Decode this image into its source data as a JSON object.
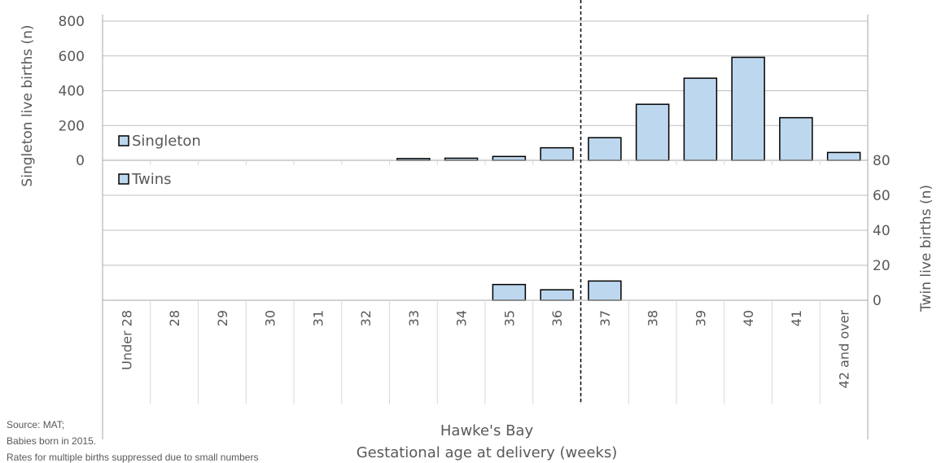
{
  "chart_data": {
    "type": "bar",
    "title": "",
    "categories": [
      "Under 28",
      "28",
      "29",
      "30",
      "31",
      "32",
      "33",
      "34",
      "35",
      "36",
      "37",
      "38",
      "39",
      "40",
      "41",
      "42 and over"
    ],
    "xlabel_region": "Hawke's Bay",
    "xlabel": "Gestational age at delivery (weeks)",
    "series": [
      {
        "name": "Singleton",
        "axis": "left",
        "values": [
          0,
          0,
          0,
          0,
          0,
          0,
          10,
          12,
          22,
          72,
          130,
          322,
          472,
          592,
          245,
          45
        ]
      },
      {
        "name": "Twins",
        "axis": "right",
        "values": [
          0,
          0,
          0,
          0,
          0,
          0,
          0,
          0,
          9,
          6,
          11,
          0,
          0,
          0,
          0,
          0
        ]
      }
    ],
    "left_axis": {
      "label": "Singleton live births (n)",
      "ticks": [
        "800",
        "600",
        "400",
        "200",
        "0"
      ],
      "range": [
        0,
        800
      ]
    },
    "right_axis": {
      "label": "Twin live births (n)",
      "ticks": [
        "80",
        "60",
        "40",
        "20",
        "0"
      ],
      "range": [
        0,
        80
      ]
    },
    "reference_line": "between 36 and 37 weeks (dashed)",
    "grid": true,
    "bar_color": "#BDD7EE",
    "bar_edge_color": "#000000"
  },
  "notes": {
    "source": "Source: MAT;",
    "born": "Babies born in 2015.",
    "suppressed": "Rates for multiple births suppressed due to small numbers"
  }
}
